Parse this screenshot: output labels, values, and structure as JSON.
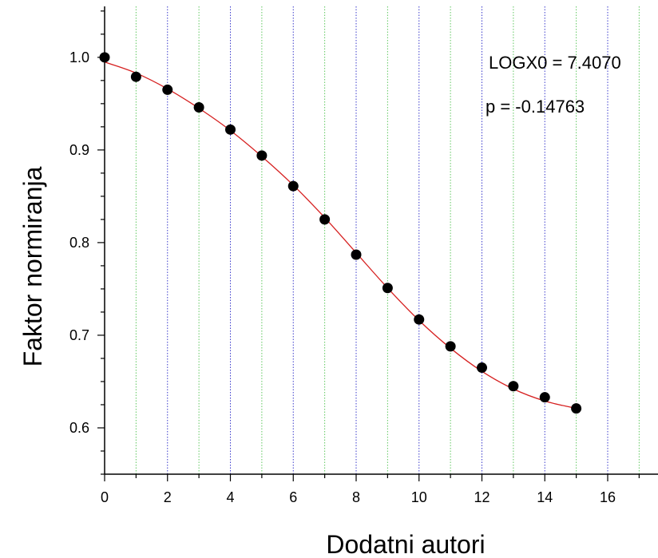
{
  "chart_data": {
    "type": "scatter",
    "xlabel": "Dodatni autori",
    "ylabel": "Faktor normiranja",
    "xlim": [
      0,
      17.6
    ],
    "ylim": [
      0.55,
      1.055
    ],
    "xticks": [
      0,
      2,
      4,
      6,
      8,
      10,
      12,
      14,
      16
    ],
    "yticks": [
      0.6,
      0.7,
      0.8,
      0.9,
      1.0
    ],
    "ytick_labels": [
      "0.6",
      "0.7",
      "0.8",
      "0.9",
      "1.0"
    ],
    "grid": "vertical dotted lines: blue at even x, green at odd x",
    "points": {
      "x": [
        0,
        1,
        2,
        3,
        4,
        5,
        6,
        7,
        8,
        9,
        10,
        11,
        12,
        13,
        14,
        15
      ],
      "y": [
        1.0,
        0.979,
        0.965,
        0.946,
        0.922,
        0.894,
        0.861,
        0.825,
        0.787,
        0.751,
        0.717,
        0.688,
        0.665,
        0.645,
        0.633,
        0.621
      ],
      "color": "#000000"
    },
    "fit": {
      "color": "#d62020",
      "x": [
        0,
        1,
        2,
        3,
        4,
        5,
        6,
        7,
        8,
        9,
        10,
        11,
        12,
        13,
        14,
        15
      ],
      "y": [
        0.995,
        0.983,
        0.966,
        0.945,
        0.921,
        0.893,
        0.862,
        0.827,
        0.789,
        0.751,
        0.716,
        0.686,
        0.661,
        0.642,
        0.629,
        0.621
      ]
    },
    "annotations": [
      "LOGX0 = 7.4070",
      "p = -0.14763"
    ]
  }
}
